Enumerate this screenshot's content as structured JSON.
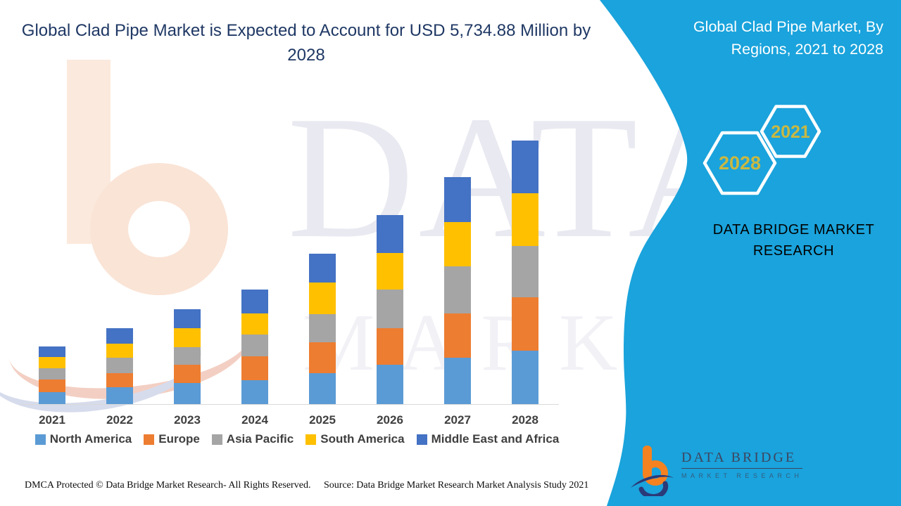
{
  "page": {
    "main_title_line1": "Global Clad Pipe Market is Expected to Account for USD 5,734.88 Million by",
    "main_title_line2": "2028",
    "footer_left": "DMCA Protected © Data Bridge Market Research- All Rights Reserved.",
    "footer_right": "Source: Data Bridge Market Research Market Analysis Study 2021",
    "watermark_text_big": "DATA B",
    "watermark_text_small": "MARKE"
  },
  "panel": {
    "title_line1": "Global Clad Pipe Market, By",
    "title_line2": "Regions, 2021 to 2028",
    "hex_back_year": "2028",
    "hex_front_year": "2021",
    "brand_line1": "DATA BRIDGE MARKET",
    "brand_line2": "RESEARCH",
    "logo_title": "DATA BRIDGE",
    "logo_subtitle": "MARKET RESEARCH",
    "colors": {
      "panel_bg": "#1aa3dc",
      "panel_title": "#ffffff",
      "hex_year": "#c9b842",
      "brand_gold": "#e6d34f",
      "logo_orange": "#f58220",
      "logo_navy": "#2b3a78",
      "logo_text": "#3d4660"
    }
  },
  "chart_data": {
    "type": "bar",
    "stacked": true,
    "title": "Global Clad Pipe Market is Expected to Account for USD 5,734.88 Million by 2028",
    "subtitle": "Global Clad Pipe Market, By Regions, 2021 to 2028",
    "unit": "USD Million",
    "categories": [
      "2021",
      "2022",
      "2023",
      "2024",
      "2025",
      "2026",
      "2027",
      "2028"
    ],
    "series": [
      {
        "name": "North America",
        "color": "#5b9bd5",
        "values": [
          260,
          367,
          459,
          520,
          673,
          856,
          1009,
          1162
        ]
      },
      {
        "name": "Europe",
        "color": "#ed7d31",
        "values": [
          275,
          306,
          398,
          520,
          673,
          795,
          963,
          1162
        ]
      },
      {
        "name": "Asia Pacific",
        "color": "#a5a5a5",
        "values": [
          245,
          336,
          382,
          474,
          612,
          841,
          1025,
          1116
        ]
      },
      {
        "name": "South America",
        "color": "#ffc000",
        "values": [
          245,
          306,
          413,
          459,
          688,
          795,
          963,
          1147.88
        ]
      },
      {
        "name": "Middle East and Africa",
        "color": "#4472c4",
        "values": [
          230,
          336,
          413,
          520,
          627,
          826,
          979,
          1147
        ]
      }
    ],
    "stack_order_bottom_to_top": [
      "North America",
      "Europe",
      "Asia Pacific",
      "South America",
      "Middle East and Africa"
    ],
    "totals_by_year": [
      1255,
      1651,
      2065,
      2493,
      3273,
      4113,
      4939,
      5734.88
    ],
    "highlight_total_2028": 5734.88,
    "values_estimated_from_pixels": true,
    "ylim": [
      0,
      5900
    ],
    "y_axis_visible": false,
    "gridlines": false,
    "legend_position": "bottom",
    "axis_line_color": "#d9d9d9",
    "label_color": "#404040",
    "title_color": "#1f3864"
  }
}
